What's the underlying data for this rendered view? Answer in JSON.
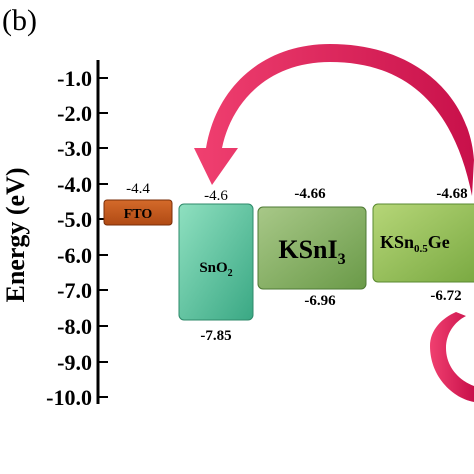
{
  "panel_label": "(b)",
  "y_axis": {
    "label": "Energy (eV)",
    "ticks": [
      "-1.0",
      "-2.0",
      "-3.0",
      "-4.0",
      "-5.0",
      "-6.0",
      "-7.0",
      "-8.0",
      "-9.0",
      "-10.0"
    ]
  },
  "materials": [
    {
      "name": "FTO",
      "top_label": "-4.4",
      "bottom_label": "",
      "color": "#c65a1e"
    },
    {
      "name": "SnO",
      "subscript": "2",
      "suffix": "",
      "top_label": "-4.6",
      "bottom_label": "-7.85",
      "color": "#5fc8a0"
    },
    {
      "name": "KSnI",
      "subscript": "3",
      "suffix": "",
      "top_label": "-4.66",
      "bottom_label": "-6.96",
      "color": "#8fb36a"
    },
    {
      "name": "KSn",
      "subscript": "0.5",
      "suffix": "Ge",
      "top_label": "-4.68",
      "bottom_label": "-6.72",
      "color": "#9cc45c"
    }
  ],
  "colors": {
    "arrow": "#e8245c",
    "axis": "#000000"
  }
}
